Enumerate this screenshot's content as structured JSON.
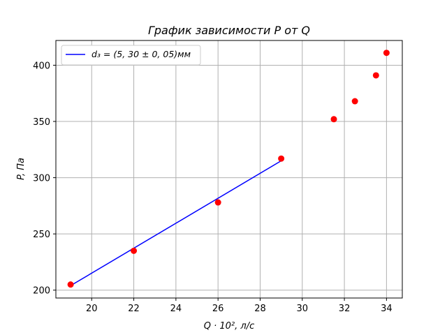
{
  "chart_data": {
    "type": "scatter",
    "title": "График зависимости P от Q",
    "xlabel": "Q · 10², л/c",
    "ylabel": "P, Па",
    "xlim": [
      18.3,
      34.75
    ],
    "ylim": [
      193,
      422
    ],
    "xticks": [
      20,
      22,
      24,
      26,
      28,
      30,
      32,
      34
    ],
    "yticks": [
      200,
      250,
      300,
      350,
      400
    ],
    "grid": true,
    "legend_position": "top-left",
    "points": {
      "color": "#ff0000",
      "x": [
        19,
        22,
        26,
        29,
        31.5,
        32.5,
        33.5,
        34
      ],
      "y": [
        205,
        235,
        278,
        317,
        352,
        368,
        391,
        411
      ]
    },
    "series": [
      {
        "name": "d₃ = (5, 30 ± 0, 05)мм",
        "type": "line",
        "color": "#0000ff",
        "x": [
          19,
          29
        ],
        "y": [
          204,
          315
        ]
      }
    ]
  }
}
